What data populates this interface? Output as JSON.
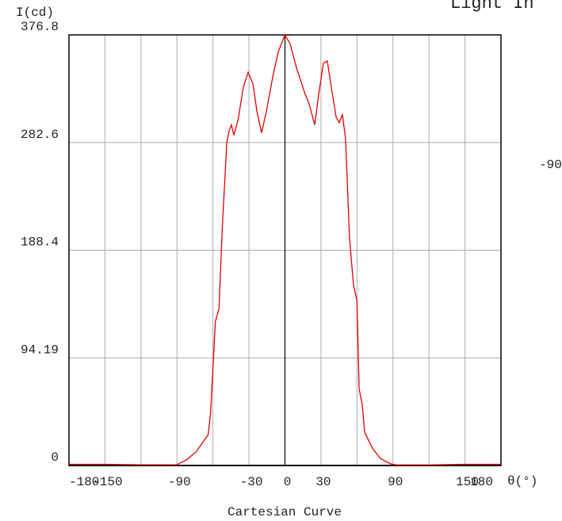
{
  "chart_data": {
    "type": "line",
    "title": "Light In",
    "side_label": "-90",
    "ylabel": "I(cd)",
    "xlabel": "θ(°)",
    "caption": "Cartesian Curve",
    "xlim": [
      -180,
      180
    ],
    "ylim": [
      0,
      376.8
    ],
    "xticks": [
      -180,
      -150,
      -90,
      -30,
      0,
      30,
      90,
      150,
      180
    ],
    "xgrid": [
      -180,
      -150,
      -120,
      -90,
      -60,
      -30,
      0,
      30,
      60,
      90,
      120,
      150,
      180
    ],
    "yticks": [
      0,
      94.19,
      188.4,
      282.6,
      376.8
    ],
    "grid": true,
    "series": [
      {
        "name": "I(cd)",
        "color": "#e00000",
        "x": [
          -180,
          -150,
          -120,
          -95,
          -90,
          -82,
          -74,
          -64,
          -62,
          -58,
          -55,
          -52,
          -48.5,
          -46.5,
          -44.6,
          -42.6,
          -39,
          -34.7,
          -30.7,
          -26.7,
          -23.4,
          -19.5,
          -15.5,
          -10,
          -5.6,
          0,
          4.3,
          9.6,
          16.8,
          20,
          24.8,
          28,
          32,
          35.3,
          38.6,
          42.6,
          45.2,
          47.9,
          50.5,
          53.8,
          57.1,
          60,
          61.8,
          64.4,
          66.4,
          73,
          79.6,
          88.2,
          92.7,
          120,
          150,
          180
        ],
        "values": [
          1,
          1,
          0.6,
          0.6,
          0.7,
          5,
          12,
          27,
          46,
          126,
          137,
          213,
          282,
          293,
          298,
          289,
          303,
          331,
          344,
          334,
          310,
          291,
          310,
          341,
          362,
          376.8,
          369,
          348,
          325,
          317,
          298,
          324,
          352,
          354,
          331,
          305,
          300,
          307,
          286,
          199,
          158,
          144,
          67,
          53,
          29,
          15,
          6,
          1.4,
          0.5,
          0.5,
          1,
          1
        ]
      }
    ]
  }
}
